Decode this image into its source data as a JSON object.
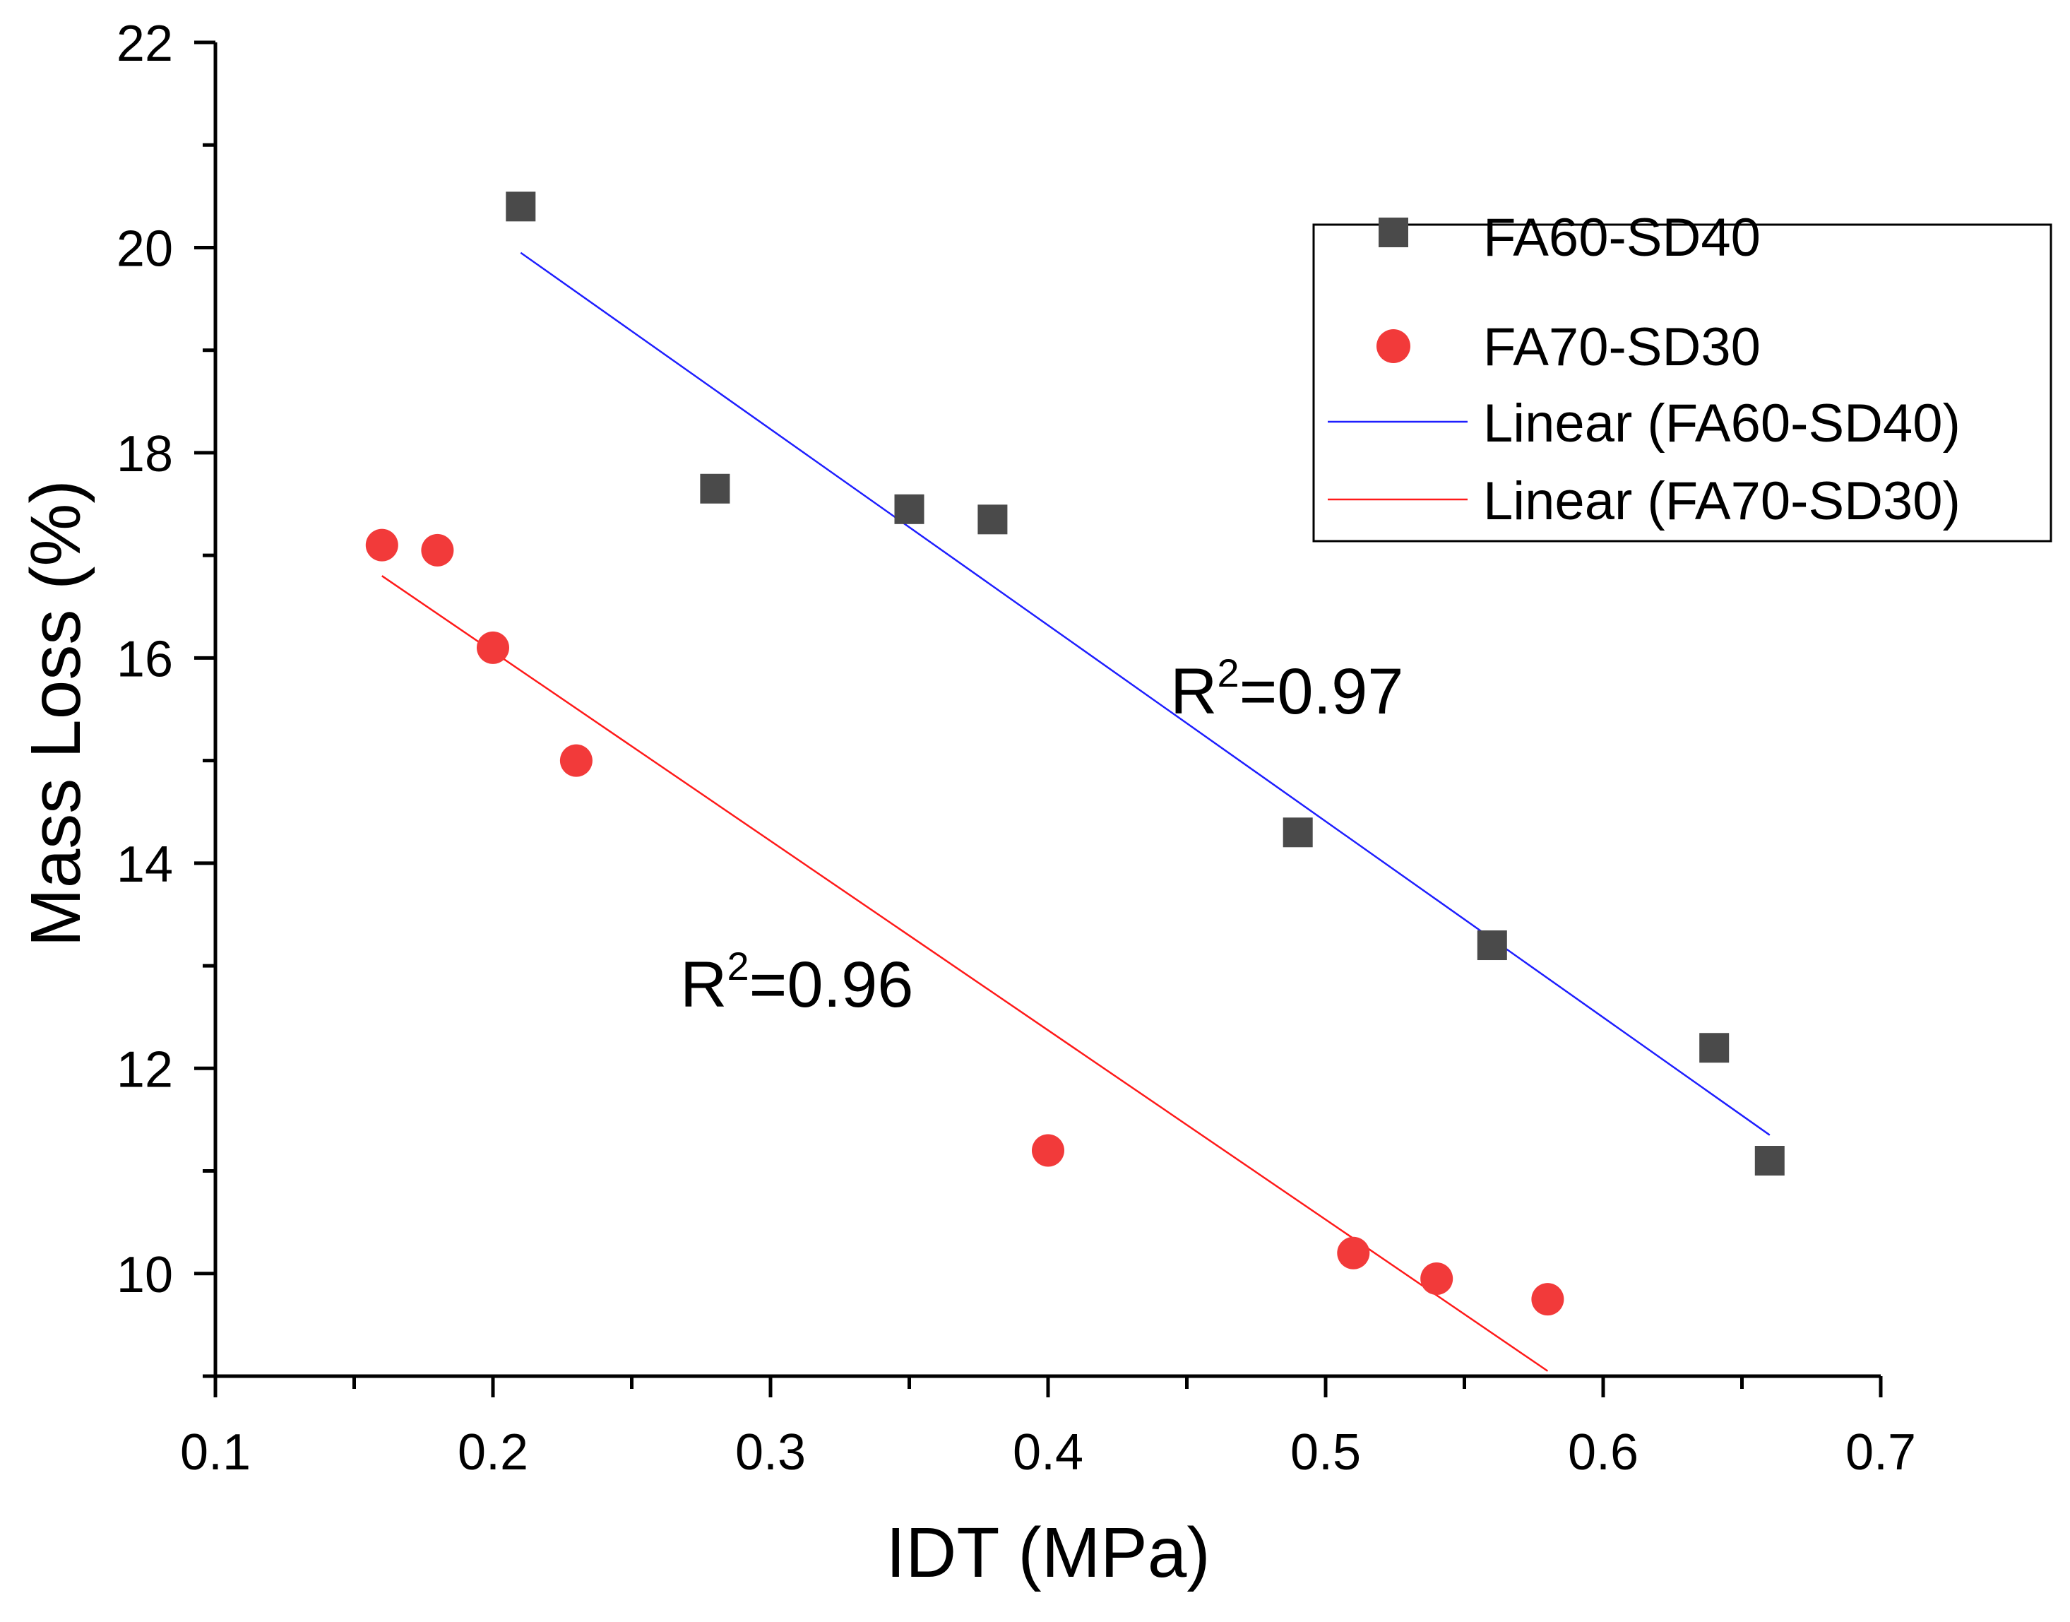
{
  "chart_data": {
    "type": "scatter",
    "title": "",
    "xlabel": "IDT (MPa)",
    "ylabel": "Mass Loss (%)",
    "xlim": [
      0.1,
      0.7
    ],
    "ylim": [
      9.0,
      22.0
    ],
    "x_ticks": [
      0.1,
      0.2,
      0.3,
      0.4,
      0.5,
      0.6,
      0.7
    ],
    "x_tick_labels": [
      "0.1",
      "0.2",
      "0.3",
      "0.4",
      "0.5",
      "0.6",
      "0.7"
    ],
    "y_ticks": [
      10,
      12,
      14,
      16,
      18,
      20,
      22
    ],
    "y_tick_labels": [
      "10",
      "12",
      "14",
      "16",
      "18",
      "20",
      "22"
    ],
    "grid": false,
    "legend_position": "top-right",
    "series": [
      {
        "name": "FA60-SD40",
        "marker": "square",
        "color": "#4a4a4a",
        "x": [
          0.21,
          0.28,
          0.35,
          0.38,
          0.49,
          0.56,
          0.64,
          0.66
        ],
        "y": [
          20.4,
          17.65,
          17.45,
          17.35,
          14.3,
          13.2,
          12.2,
          11.1
        ]
      },
      {
        "name": "FA70-SD30",
        "marker": "circle",
        "color": "#f23a3a",
        "x": [
          0.16,
          0.18,
          0.2,
          0.23,
          0.4,
          0.51,
          0.54,
          0.58
        ],
        "y": [
          17.1,
          17.05,
          16.1,
          15.0,
          11.2,
          10.2,
          9.95,
          9.75
        ]
      }
    ],
    "fits": [
      {
        "name": "Linear (FA60-SD40)",
        "color": "#1f1fff",
        "x": [
          0.21,
          0.66
        ],
        "y": [
          19.95,
          11.35
        ],
        "r2_prefix": "R",
        "r2_sup": "2",
        "r2_value": "=0.97"
      },
      {
        "name": "Linear (FA70-SD30)",
        "color": "#ff1a1a",
        "x": [
          0.16,
          0.58
        ],
        "y": [
          16.8,
          9.05
        ],
        "r2_prefix": "R",
        "r2_sup": "2",
        "r2_value": "=0.96"
      }
    ]
  }
}
